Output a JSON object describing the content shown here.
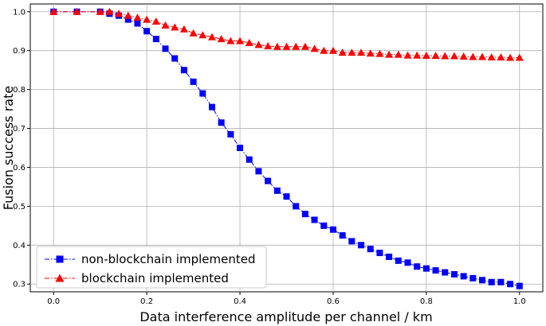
{
  "chart_data": {
    "type": "line",
    "title": "",
    "xlabel": "Data interference amplitude per channel / km",
    "ylabel": "Fusion success rate",
    "xlim": [
      -0.05,
      1.05
    ],
    "ylim": [
      0.28,
      1.02
    ],
    "xticks": [
      0.0,
      0.2,
      0.4,
      0.6,
      0.8,
      1.0
    ],
    "xtick_labels": [
      "0.0",
      "0.2",
      "0.4",
      "0.6",
      "0.8",
      "1.0"
    ],
    "yticks": [
      0.3,
      0.4,
      0.5,
      0.6,
      0.7,
      0.8,
      0.9,
      1.0
    ],
    "ytick_labels": [
      "0.3",
      "0.4",
      "0.5",
      "0.6",
      "0.7",
      "0.8",
      "0.9",
      "1.0"
    ],
    "grid": true,
    "legend_position": "bottom-left",
    "series": [
      {
        "name": "non-blockchain implemented",
        "color": "#0000ff",
        "marker": "square",
        "linestyle": "dashdot",
        "x": [
          0.0,
          0.05,
          0.1,
          0.12,
          0.14,
          0.16,
          0.18,
          0.2,
          0.22,
          0.24,
          0.26,
          0.28,
          0.3,
          0.32,
          0.34,
          0.36,
          0.38,
          0.4,
          0.42,
          0.44,
          0.46,
          0.48,
          0.5,
          0.52,
          0.54,
          0.56,
          0.58,
          0.6,
          0.62,
          0.64,
          0.66,
          0.68,
          0.7,
          0.72,
          0.74,
          0.76,
          0.78,
          0.8,
          0.82,
          0.84,
          0.86,
          0.88,
          0.9,
          0.92,
          0.94,
          0.96,
          0.98,
          1.0
        ],
        "y": [
          1.0,
          1.0,
          1.0,
          0.995,
          0.99,
          0.98,
          0.97,
          0.95,
          0.93,
          0.905,
          0.88,
          0.85,
          0.82,
          0.79,
          0.755,
          0.715,
          0.685,
          0.65,
          0.62,
          0.59,
          0.565,
          0.54,
          0.525,
          0.5,
          0.48,
          0.465,
          0.45,
          0.44,
          0.425,
          0.41,
          0.4,
          0.39,
          0.38,
          0.37,
          0.36,
          0.355,
          0.345,
          0.34,
          0.335,
          0.33,
          0.325,
          0.32,
          0.315,
          0.31,
          0.305,
          0.305,
          0.3,
          0.295
        ]
      },
      {
        "name": "blockchain implemented",
        "color": "#ff0000",
        "marker": "triangle",
        "linestyle": "dashdot",
        "x": [
          0.0,
          0.05,
          0.1,
          0.12,
          0.14,
          0.16,
          0.18,
          0.2,
          0.22,
          0.24,
          0.26,
          0.28,
          0.3,
          0.32,
          0.34,
          0.36,
          0.38,
          0.4,
          0.42,
          0.44,
          0.46,
          0.48,
          0.5,
          0.52,
          0.54,
          0.56,
          0.58,
          0.6,
          0.62,
          0.64,
          0.66,
          0.68,
          0.7,
          0.72,
          0.74,
          0.76,
          0.78,
          0.8,
          0.82,
          0.84,
          0.86,
          0.88,
          0.9,
          0.92,
          0.94,
          0.96,
          0.98,
          1.0
        ],
        "y": [
          1.0,
          1.0,
          1.0,
          1.0,
          0.995,
          0.99,
          0.985,
          0.98,
          0.975,
          0.965,
          0.96,
          0.955,
          0.945,
          0.94,
          0.935,
          0.93,
          0.925,
          0.925,
          0.92,
          0.915,
          0.912,
          0.91,
          0.91,
          0.91,
          0.91,
          0.905,
          0.9,
          0.9,
          0.895,
          0.895,
          0.895,
          0.893,
          0.892,
          0.89,
          0.89,
          0.888,
          0.888,
          0.887,
          0.887,
          0.886,
          0.886,
          0.885,
          0.884,
          0.884,
          0.883,
          0.883,
          0.882,
          0.882
        ]
      }
    ]
  }
}
